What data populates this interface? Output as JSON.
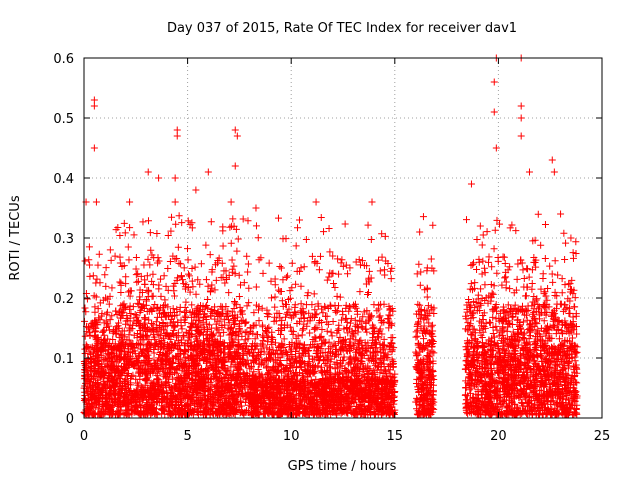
{
  "chart_data": {
    "type": "scatter",
    "title": "Day 037 of 2015, Rate Of TEC Index for receiver dav1",
    "xlabel": "GPS time / hours",
    "ylabel": "ROTI / TECUs",
    "xlim": [
      0,
      25
    ],
    "ylim": [
      0,
      0.6
    ],
    "x_ticks": [
      0,
      5,
      10,
      15,
      20,
      25
    ],
    "y_ticks": [
      0,
      0.1,
      0.2,
      0.3,
      0.4,
      0.5,
      0.6
    ],
    "x_tick_labels": [
      "0",
      "5",
      "10",
      "15",
      "20",
      "25"
    ],
    "y_tick_labels": [
      "0",
      "0.1",
      "0.2",
      "0.3",
      "0.4",
      "0.5",
      "0.6"
    ],
    "grid": true,
    "marker": "+",
    "series": [
      {
        "name": "ROTI",
        "color": "#ff0000",
        "segments": [
          {
            "start": 0.0,
            "end": 15.0
          },
          {
            "start": 16.0,
            "end": 16.9
          },
          {
            "start": 18.4,
            "end": 23.8
          }
        ],
        "notable_points": [
          {
            "x": 0.5,
            "y": 0.53
          },
          {
            "x": 0.5,
            "y": 0.52
          },
          {
            "x": 0.5,
            "y": 0.45
          },
          {
            "x": 0.1,
            "y": 0.36
          },
          {
            "x": 0.6,
            "y": 0.36
          },
          {
            "x": 2.2,
            "y": 0.36
          },
          {
            "x": 3.1,
            "y": 0.41
          },
          {
            "x": 3.6,
            "y": 0.4
          },
          {
            "x": 4.5,
            "y": 0.48
          },
          {
            "x": 4.5,
            "y": 0.47
          },
          {
            "x": 4.4,
            "y": 0.4
          },
          {
            "x": 4.4,
            "y": 0.36
          },
          {
            "x": 5.4,
            "y": 0.38
          },
          {
            "x": 6.0,
            "y": 0.41
          },
          {
            "x": 7.3,
            "y": 0.48
          },
          {
            "x": 7.4,
            "y": 0.47
          },
          {
            "x": 7.3,
            "y": 0.42
          },
          {
            "x": 7.1,
            "y": 0.36
          },
          {
            "x": 8.3,
            "y": 0.35
          },
          {
            "x": 10.4,
            "y": 0.33
          },
          {
            "x": 11.2,
            "y": 0.36
          },
          {
            "x": 13.9,
            "y": 0.36
          },
          {
            "x": 16.2,
            "y": 0.31
          },
          {
            "x": 18.7,
            "y": 0.39
          },
          {
            "x": 19.9,
            "y": 0.6
          },
          {
            "x": 19.8,
            "y": 0.56
          },
          {
            "x": 19.8,
            "y": 0.51
          },
          {
            "x": 19.9,
            "y": 0.45
          },
          {
            "x": 21.1,
            "y": 0.6
          },
          {
            "x": 21.1,
            "y": 0.52
          },
          {
            "x": 21.1,
            "y": 0.5
          },
          {
            "x": 21.1,
            "y": 0.47
          },
          {
            "x": 21.5,
            "y": 0.41
          },
          {
            "x": 22.6,
            "y": 0.43
          },
          {
            "x": 22.7,
            "y": 0.41
          },
          {
            "x": 23.0,
            "y": 0.34
          },
          {
            "x": 23.5,
            "y": 0.3
          }
        ]
      }
    ]
  }
}
